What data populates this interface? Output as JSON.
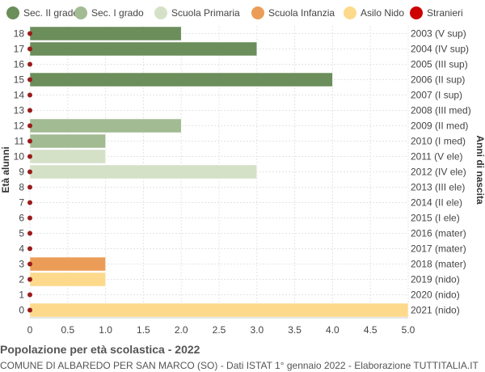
{
  "chart_data": {
    "type": "bar",
    "orientation": "horizontal",
    "title": "Popolazione per età scolastica - 2022",
    "subtitle": "COMUNE DI ALBAREDO PER SAN MARCO (SO) - Dati ISTAT 1° gennaio 2022 - Elaborazione TUTTITALIA.IT",
    "ylabel_left": "Età alunni",
    "ylabel_right": "Anni di nascita",
    "xlim": [
      0,
      5
    ],
    "x_ticks": [
      "0",
      "0.5",
      "1.0",
      "1.5",
      "2.0",
      "2.5",
      "3.0",
      "3.5",
      "4.0",
      "4.5",
      "5.0"
    ],
    "grid": true,
    "legend_position": "top",
    "legend": [
      {
        "name": "Sec. II grado",
        "color": "#6b8e5a"
      },
      {
        "name": "Sec. I grado",
        "color": "#a2bb92"
      },
      {
        "name": "Scuola Primaria",
        "color": "#d5e1c7"
      },
      {
        "name": "Scuola Infanzia",
        "color": "#eb9d57"
      },
      {
        "name": "Asilo Nido",
        "color": "#fdd98c"
      },
      {
        "name": "Stranieri",
        "color": "#cc0000"
      }
    ],
    "stranieri_marker_color": "#9b1c1c",
    "rows": [
      {
        "age": "18",
        "birth": "2003 (V sup)",
        "value": 2,
        "group": 0
      },
      {
        "age": "17",
        "birth": "2004 (IV sup)",
        "value": 3,
        "group": 0
      },
      {
        "age": "16",
        "birth": "2005 (III sup)",
        "value": 0,
        "group": 0
      },
      {
        "age": "15",
        "birth": "2006 (II sup)",
        "value": 4,
        "group": 0
      },
      {
        "age": "14",
        "birth": "2007 (I sup)",
        "value": 0,
        "group": 0
      },
      {
        "age": "13",
        "birth": "2008 (III med)",
        "value": 0,
        "group": 1
      },
      {
        "age": "12",
        "birth": "2009 (II med)",
        "value": 2,
        "group": 1
      },
      {
        "age": "11",
        "birth": "2010 (I med)",
        "value": 1,
        "group": 1
      },
      {
        "age": "10",
        "birth": "2011 (V ele)",
        "value": 1,
        "group": 2
      },
      {
        "age": "9",
        "birth": "2012 (IV ele)",
        "value": 3,
        "group": 2
      },
      {
        "age": "8",
        "birth": "2013 (III ele)",
        "value": 0,
        "group": 2
      },
      {
        "age": "7",
        "birth": "2014 (II ele)",
        "value": 0,
        "group": 2
      },
      {
        "age": "6",
        "birth": "2015 (I ele)",
        "value": 0,
        "group": 2
      },
      {
        "age": "5",
        "birth": "2016 (mater)",
        "value": 0,
        "group": 3
      },
      {
        "age": "4",
        "birth": "2017 (mater)",
        "value": 0,
        "group": 3
      },
      {
        "age": "3",
        "birth": "2018 (mater)",
        "value": 1,
        "group": 3
      },
      {
        "age": "2",
        "birth": "2019 (nido)",
        "value": 1,
        "group": 4
      },
      {
        "age": "1",
        "birth": "2020 (nido)",
        "value": 0,
        "group": 4
      },
      {
        "age": "0",
        "birth": "2021 (nido)",
        "value": 5,
        "group": 4
      }
    ],
    "stranieri_values": [
      0,
      0,
      0,
      0,
      0,
      0,
      0,
      0,
      0,
      0,
      0,
      0,
      0,
      0,
      0,
      0,
      0,
      0,
      0
    ]
  }
}
